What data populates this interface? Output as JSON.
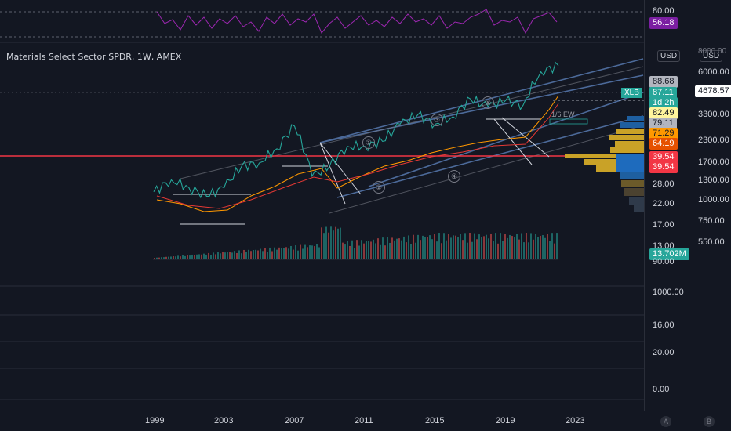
{
  "instrument": {
    "title": "Materials Select Sector SPDR, 1W, AMEX",
    "symbol_tag": "XLB",
    "ew_label": "1/6 EW"
  },
  "rsi": {
    "upper_level": "80.00",
    "value": "56.18",
    "value_color": "#7b1fa2"
  },
  "currency": {
    "left": "USD",
    "right": "USD"
  },
  "price_axis_left": [
    "88.68",
    "87.11",
    "1d 2h",
    "82.49",
    "79.11",
    "71.29",
    "64.19",
    "39.54",
    "39.54",
    "28.00",
    "22.00",
    "17.00",
    "13.00",
    "13.702M",
    "90.00",
    "1000.00",
    "16.00",
    "20.00",
    "0.00"
  ],
  "price_axis_right": [
    "8000.00",
    "6000.00",
    "4678.57",
    "3300.00",
    "2300.00",
    "1700.00",
    "1300.00",
    "1000.00",
    "750.00",
    "550.00"
  ],
  "wave_labels": [
    "①",
    "②",
    "③",
    "④",
    "⑤"
  ],
  "time_axis": [
    "1999",
    "2003",
    "2007",
    "2011",
    "2015",
    "2019",
    "2023"
  ],
  "corner_buttons": [
    "A",
    "B"
  ],
  "colors": {
    "background": "#131722",
    "up": "#26a69a",
    "down": "#ef5350",
    "rsi_line": "#9c27b0",
    "red_level": "#f23645",
    "channel": "#5b7fb8"
  },
  "chart_data": {
    "type": "line",
    "x": [
      1999,
      2000,
      2001,
      2002,
      2003,
      2004,
      2005,
      2006,
      2007,
      2008,
      2009,
      2010,
      2011,
      2012,
      2013,
      2014,
      2015,
      2016,
      2017,
      2018,
      2019,
      2020,
      2021,
      2022
    ],
    "series": [
      {
        "name": "XLB",
        "values": [
          20,
          23,
          21,
          19,
          21,
          27,
          28,
          33,
          43,
          24,
          27,
          34,
          34,
          36,
          44,
          49,
          44,
          48,
          59,
          54,
          58,
          55,
          81,
          87
        ]
      }
    ],
    "ylim": [
      13,
      90
    ],
    "grid": false
  }
}
